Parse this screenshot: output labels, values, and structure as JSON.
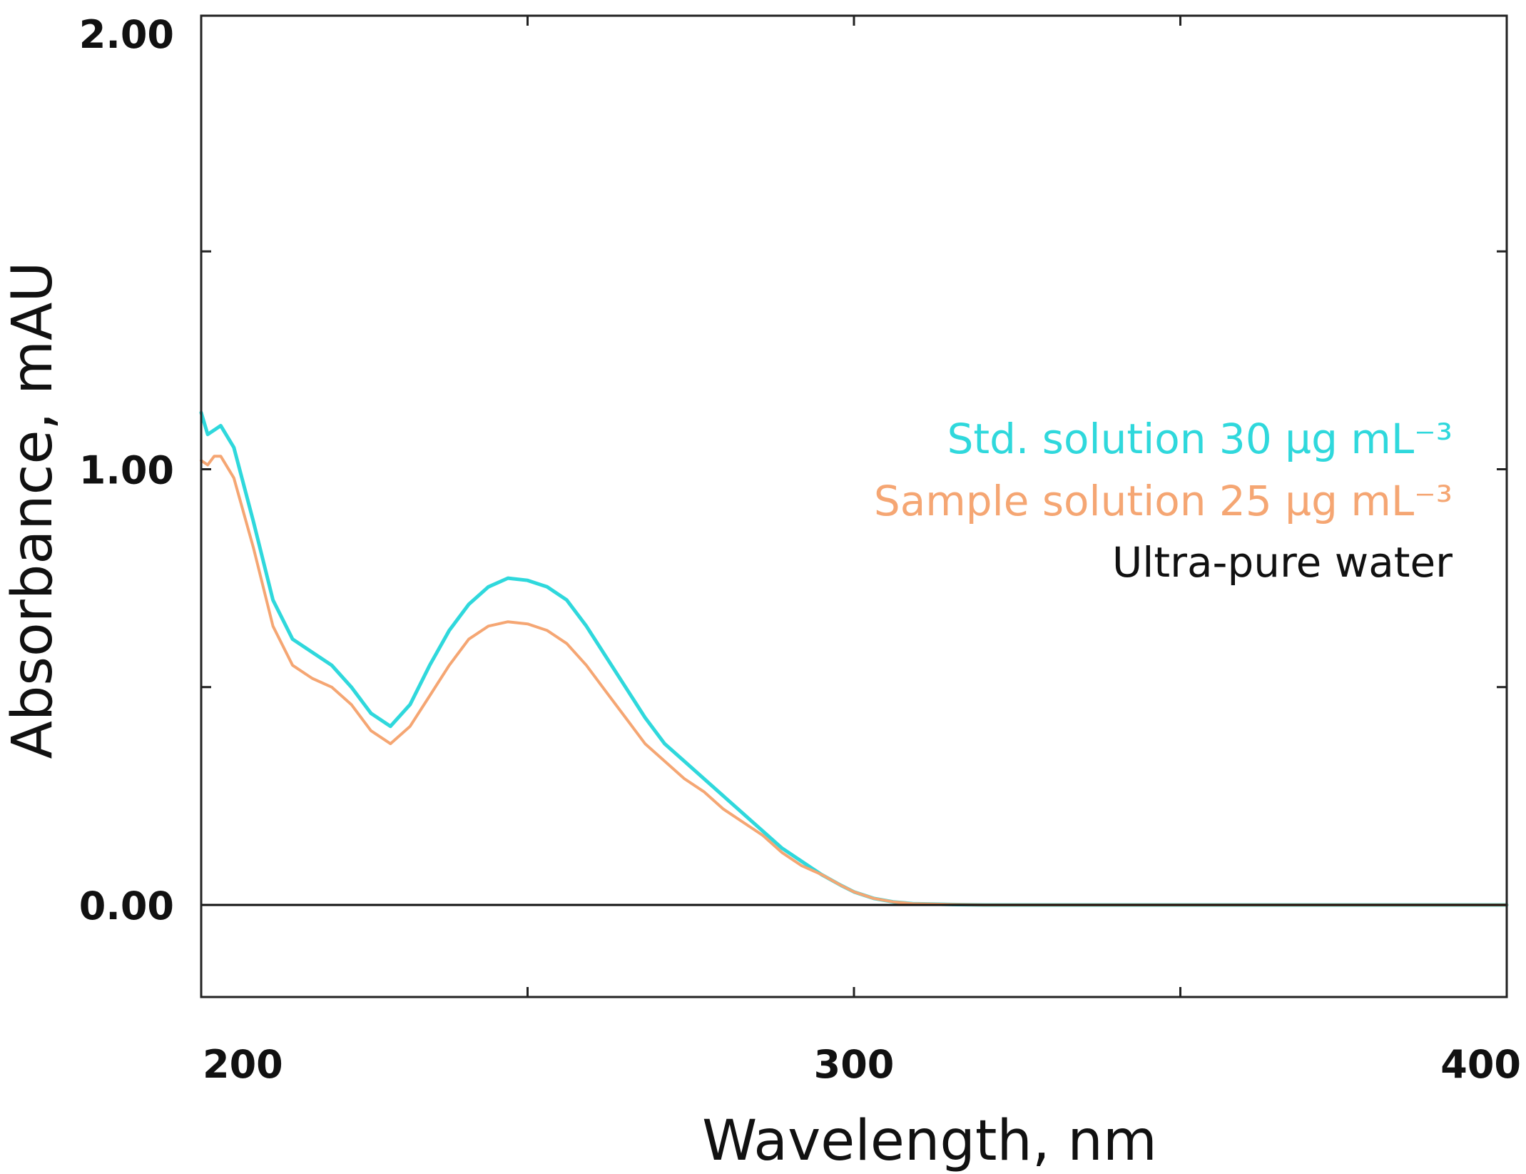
{
  "chart_data": {
    "type": "line",
    "title": "",
    "xlabel": "Wavelength, nm",
    "ylabel": "Absorbance, mAU",
    "xlim": [
      200,
      400
    ],
    "ylim": [
      -0.2,
      2.0
    ],
    "x_ticks": [
      {
        "value": 200,
        "label": "200"
      },
      {
        "value": 300,
        "label": "300"
      },
      {
        "value": 400,
        "label": "400"
      }
    ],
    "y_ticks": [
      {
        "value": 0.0,
        "label": "0.00"
      },
      {
        "value": 1.0,
        "label": "1.00"
      },
      {
        "value": 2.0,
        "label": "2.00"
      }
    ],
    "legend_position": "right",
    "series": [
      {
        "name": "Std. solution 30 µg mL⁻³",
        "color": "#2fd8dc",
        "x": [
          200,
          201,
          202,
          203,
          205,
          208,
          211,
          214,
          217,
          220,
          223,
          226,
          229,
          232,
          235,
          238,
          241,
          244,
          247,
          250,
          253,
          256,
          259,
          262,
          265,
          268,
          271,
          274,
          277,
          280,
          283,
          286,
          289,
          292,
          295,
          298,
          300,
          303,
          306,
          309,
          312,
          315,
          320,
          330,
          340,
          350,
          360,
          370,
          380,
          390,
          400
        ],
        "y": [
          1.13,
          1.08,
          1.09,
          1.1,
          1.05,
          0.88,
          0.7,
          0.61,
          0.58,
          0.55,
          0.5,
          0.44,
          0.41,
          0.46,
          0.55,
          0.63,
          0.69,
          0.73,
          0.75,
          0.745,
          0.73,
          0.7,
          0.64,
          0.57,
          0.5,
          0.43,
          0.37,
          0.33,
          0.29,
          0.25,
          0.21,
          0.17,
          0.13,
          0.1,
          0.07,
          0.045,
          0.03,
          0.015,
          0.007,
          0.003,
          0.002,
          0.001,
          0.0,
          0.0,
          0.0,
          0.0,
          0.0,
          0.0,
          0.0,
          0.0,
          0.0
        ]
      },
      {
        "name": "Sample solution 25 µg mL⁻³",
        "color": "#f5a673",
        "x": [
          200,
          201,
          202,
          203,
          205,
          208,
          211,
          214,
          217,
          220,
          223,
          226,
          229,
          232,
          235,
          238,
          241,
          244,
          247,
          250,
          253,
          256,
          259,
          262,
          265,
          268,
          271,
          274,
          277,
          280,
          283,
          286,
          289,
          292,
          295,
          298,
          300,
          303,
          306,
          309,
          312,
          315,
          320,
          330,
          340,
          350,
          360,
          370,
          380,
          390,
          400
        ],
        "y": [
          1.02,
          1.01,
          1.03,
          1.03,
          0.98,
          0.82,
          0.64,
          0.55,
          0.52,
          0.5,
          0.46,
          0.4,
          0.37,
          0.41,
          0.48,
          0.55,
          0.61,
          0.64,
          0.65,
          0.645,
          0.63,
          0.6,
          0.55,
          0.49,
          0.43,
          0.37,
          0.33,
          0.29,
          0.26,
          0.22,
          0.19,
          0.16,
          0.12,
          0.09,
          0.07,
          0.045,
          0.03,
          0.015,
          0.007,
          0.003,
          0.002,
          0.001,
          0.0,
          0.0,
          0.0,
          0.0,
          0.0,
          0.0,
          0.0,
          0.0,
          0.0
        ]
      },
      {
        "name": "Ultra-pure water",
        "color": "#111111",
        "x": [
          200,
          400
        ],
        "y": [
          0.0,
          0.0
        ]
      }
    ]
  }
}
